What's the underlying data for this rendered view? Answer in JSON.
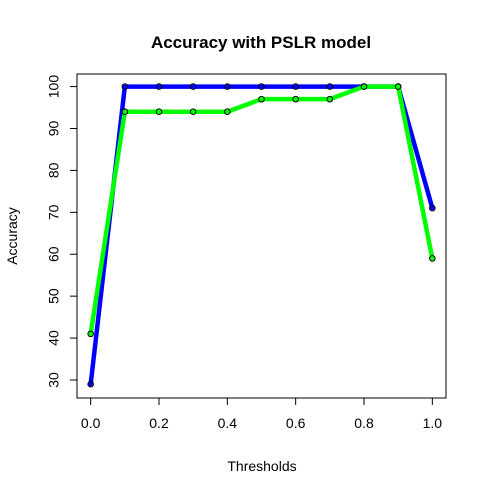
{
  "chart_data": {
    "type": "line",
    "title": "Accuracy with PSLR model",
    "xlabel": "Thresholds",
    "ylabel": "Accuracy",
    "x": [
      0.0,
      0.1,
      0.2,
      0.3,
      0.4,
      0.5,
      0.6,
      0.7,
      0.8,
      0.9,
      1.0
    ],
    "xticks": [
      "0.0",
      "0.2",
      "0.4",
      "0.6",
      "0.8",
      "1.0"
    ],
    "xtick_values": [
      0.0,
      0.2,
      0.4,
      0.6,
      0.8,
      1.0
    ],
    "yticks": [
      "30",
      "40",
      "50",
      "60",
      "70",
      "80",
      "90",
      "100"
    ],
    "ytick_values": [
      30,
      40,
      50,
      60,
      70,
      80,
      90,
      100
    ],
    "xlim": [
      -0.04,
      1.04
    ],
    "ylim": [
      25.7,
      103.0
    ],
    "grid": false,
    "legend": "none",
    "series": [
      {
        "values": [
          29,
          100,
          100,
          100,
          100,
          100,
          100,
          100,
          100,
          100,
          71
        ],
        "color": "#0000ff"
      },
      {
        "values": [
          41,
          94,
          94,
          94,
          94,
          97,
          97,
          97,
          100,
          100,
          59
        ],
        "color": "#00ff00"
      }
    ]
  }
}
